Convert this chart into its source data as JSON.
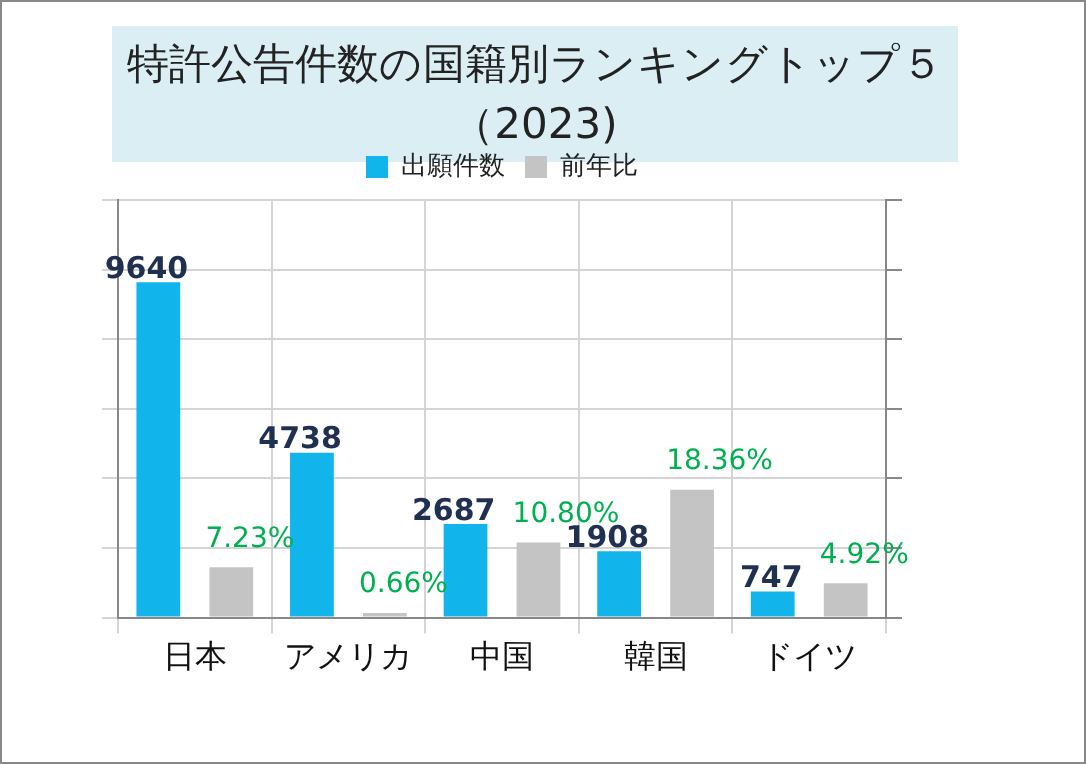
{
  "chart_data": {
    "type": "bar",
    "title": "特許公告件数の国籍別ランキングトップ５（2023)",
    "categories": [
      "日本",
      "アメリカ",
      "中国",
      "韓国",
      "ドイツ"
    ],
    "series": [
      {
        "name": "出願件数",
        "color": "#12b4ec",
        "values": [
          9640,
          4738,
          2687,
          1908,
          747
        ],
        "value_labels": [
          "9640",
          "4738",
          "2687",
          "1908",
          "747"
        ]
      },
      {
        "name": "前年比",
        "color": "#c4c4c4",
        "axis": "y2",
        "values": [
          7.23,
          0.66,
          10.8,
          18.36,
          4.92
        ],
        "value_labels": [
          "7.23%",
          "0.66%",
          "10.80%",
          "18.36%",
          "4.92%"
        ]
      }
    ],
    "ylim": [
      0,
      12000
    ],
    "yticks": [
      {
        "value": 0,
        "label": null
      },
      {
        "value": 2000,
        "label": null
      },
      {
        "value": 4000,
        "label": null
      },
      {
        "value": 6000,
        "label": null
      },
      {
        "value": 8000,
        "label": null
      },
      {
        "value": 10000,
        "label": null
      },
      {
        "value": 12000,
        "label": null
      }
    ],
    "y2lim": [
      0,
      60
    ],
    "tick_labels": "x",
    "grid": true,
    "legend": "top"
  }
}
